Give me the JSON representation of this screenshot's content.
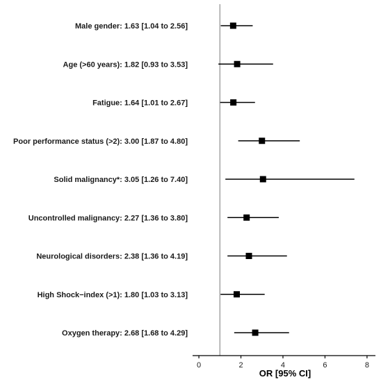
{
  "chart_data": {
    "type": "forest",
    "xlabel": "OR [95% CI]",
    "xlim": [
      -0.3,
      8.4
    ],
    "xticks": [
      0,
      2,
      4,
      6,
      8
    ],
    "reference_line": 1,
    "colors": {
      "marker": "#000000",
      "reference": "#a8a8a8",
      "axis": "#000000"
    },
    "rows": [
      {
        "label": "Male gender: 1.63 [1.04 to 2.56]",
        "or": 1.63,
        "lo": 1.04,
        "hi": 2.56
      },
      {
        "label": "Age (>60 years): 1.82 [0.93 to 3.53]",
        "or": 1.82,
        "lo": 0.93,
        "hi": 3.53
      },
      {
        "label": "Fatigue: 1.64 [1.01 to 2.67]",
        "or": 1.64,
        "lo": 1.01,
        "hi": 2.67
      },
      {
        "label": "Poor performance status (>2): 3.00 [1.87 to  4.80]",
        "or": 3.0,
        "lo": 1.87,
        "hi": 4.8
      },
      {
        "label": "Solid malignancy*: 3.05 [1.26 to  7.40]",
        "or": 3.05,
        "lo": 1.26,
        "hi": 7.4
      },
      {
        "label": "Uncontrolled malignancy: 2.27 [1.36 to  3.80]",
        "or": 2.27,
        "lo": 1.36,
        "hi": 3.8
      },
      {
        "label": "Neurological disorders: 2.38 [1.36 to  4.19]",
        "or": 2.38,
        "lo": 1.36,
        "hi": 4.19
      },
      {
        "label": "High Shock−index (>1): 1.80 [1.03 to  3.13]",
        "or": 1.8,
        "lo": 1.03,
        "hi": 3.13
      },
      {
        "label": "Oxygen therapy: 2.68 [1.68 to  4.29]",
        "or": 2.68,
        "lo": 1.68,
        "hi": 4.29
      }
    ]
  }
}
